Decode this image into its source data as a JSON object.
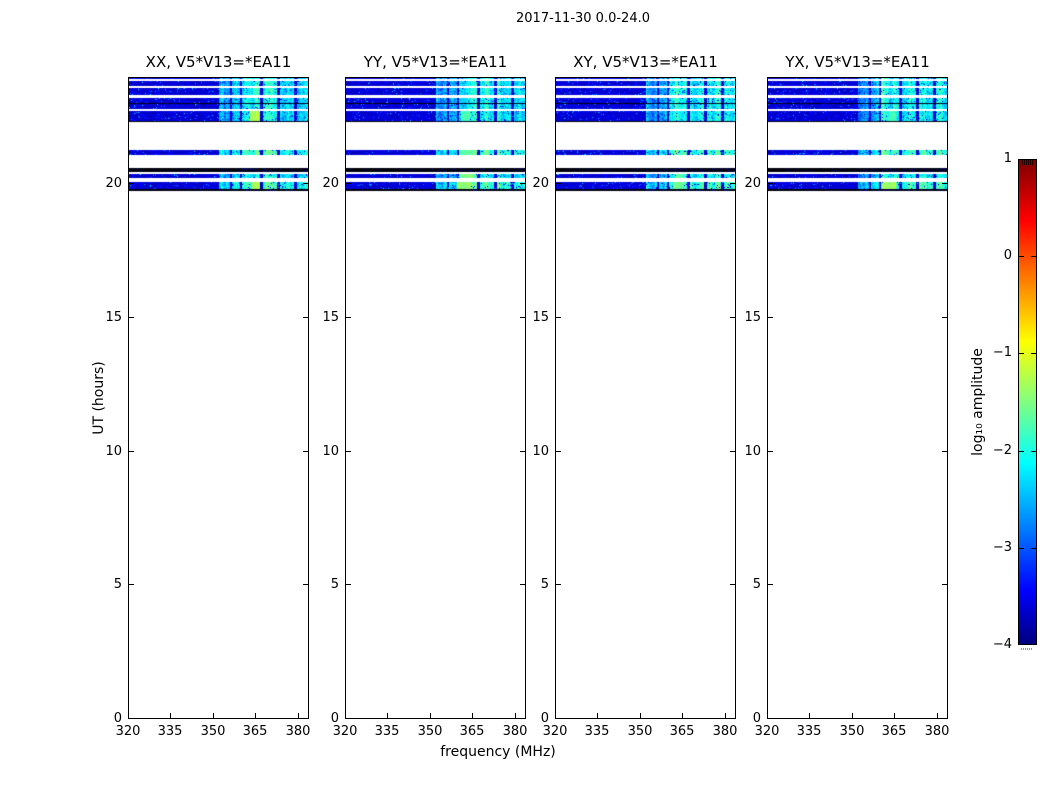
{
  "chart_data": {
    "type": "heatmap",
    "title": "2017-11-30 0.0-24.0",
    "xlabel": "frequency (MHz)",
    "ylabel": "UT (hours)",
    "xlim": [
      320,
      384
    ],
    "ylim": [
      0,
      24
    ],
    "xticks": [
      320,
      335,
      350,
      365,
      380
    ],
    "yticks": [
      0,
      5,
      10,
      15,
      20
    ],
    "grid": false,
    "panels": [
      {
        "title": "XX, V5*V13=*EA11",
        "seed": 101,
        "green_bars": [
          {
            "band": 2,
            "freq": [
              364,
              366
            ],
            "amp": -1.9
          },
          {
            "band": 6,
            "freq": [
              363,
              366.5
            ],
            "amp": -1.3
          },
          {
            "band": 11,
            "freq": [
              363.5,
              366.5
            ],
            "amp": -1.35
          }
        ]
      },
      {
        "title": "YY, V5*V13=*EA11",
        "seed": 202,
        "green_bars": [
          {
            "band": 6,
            "freq": [
              361,
              364
            ],
            "amp": -1.8
          },
          {
            "band": 8,
            "freq": [
              360.5,
              366
            ],
            "amp": -1.7
          },
          {
            "band": 10,
            "freq": [
              360.5,
              365.5
            ],
            "amp": -1.55
          },
          {
            "band": 11,
            "freq": [
              359.5,
              364.5
            ],
            "amp": -1.45
          }
        ]
      },
      {
        "title": "XY, V5*V13=*EA11",
        "seed": 303,
        "green_bars": [
          {
            "band": 10,
            "freq": [
              363,
              365.5
            ],
            "amp": -1.8
          },
          {
            "band": 11,
            "freq": [
              361.5,
              365
            ],
            "amp": -1.65
          }
        ]
      },
      {
        "title": "YX, V5*V13=*EA11",
        "seed": 404,
        "green_bars": [
          {
            "band": 6,
            "freq": [
              363,
              365
            ],
            "amp": -1.8
          },
          {
            "band": 11,
            "freq": [
              361,
              365.5
            ],
            "amp": -1.4
          }
        ]
      }
    ],
    "colorbar": {
      "label": "log₁₀ amplitude",
      "ticks": [
        1,
        0,
        -1,
        -2,
        -3,
        -4
      ],
      "range": [
        -4,
        1
      ],
      "cmap": "jet",
      "gradient_stops": [
        {
          "pos": 0,
          "color": "#00007f"
        },
        {
          "pos": 11,
          "color": "#0000ff"
        },
        {
          "pos": 37.5,
          "color": "#00ffff"
        },
        {
          "pos": 50,
          "color": "#80ff80"
        },
        {
          "pos": 62.5,
          "color": "#ffff00"
        },
        {
          "pos": 87.5,
          "color": "#ff0000"
        },
        {
          "pos": 100,
          "color": "#7f0000"
        }
      ]
    },
    "spectrogram": {
      "noise_floor_log10": -3.85,
      "rfi_level_log10": -2.6,
      "bands": [
        {
          "ut": [
            24.0,
            23.91
          ],
          "kind": "noise"
        },
        {
          "ut": [
            23.85,
            23.68
          ],
          "kind": "noise"
        },
        {
          "ut": [
            23.59,
            23.31
          ],
          "kind": "noise"
        },
        {
          "ut": [
            23.21,
            23.04
          ],
          "kind": "noise"
        },
        {
          "ut": [
            23.04,
            22.99
          ],
          "kind": "black"
        },
        {
          "ut": [
            22.99,
            22.8
          ],
          "kind": "noise"
        },
        {
          "ut": [
            22.73,
            22.37
          ],
          "kind": "noise"
        },
        {
          "ut": [
            22.37,
            22.32
          ],
          "kind": "black"
        },
        {
          "ut": [
            21.27,
            21.08
          ],
          "kind": "noise",
          "bright": true
        },
        {
          "ut": [
            20.58,
            20.43
          ],
          "kind": "black"
        },
        {
          "ut": [
            20.39,
            20.22
          ],
          "kind": "noise"
        },
        {
          "ut": [
            20.07,
            19.83
          ],
          "kind": "noise",
          "bright": true
        },
        {
          "ut": [
            19.83,
            19.74
          ],
          "kind": "black"
        }
      ],
      "rfi_clusters": [
        {
          "freq": [
            352,
            356
          ],
          "boost": 0.15
        },
        {
          "freq": [
            356.5,
            359.5
          ],
          "boost": 0.25
        },
        {
          "freq": [
            360,
            366.5
          ],
          "boost": 0.6
        },
        {
          "freq": [
            367.5,
            372.5
          ],
          "boost": 0.55
        },
        {
          "freq": [
            373.5,
            378.5
          ],
          "boost": 0.5
        },
        {
          "freq": [
            379.5,
            384
          ],
          "boost": 0.4
        }
      ]
    }
  }
}
